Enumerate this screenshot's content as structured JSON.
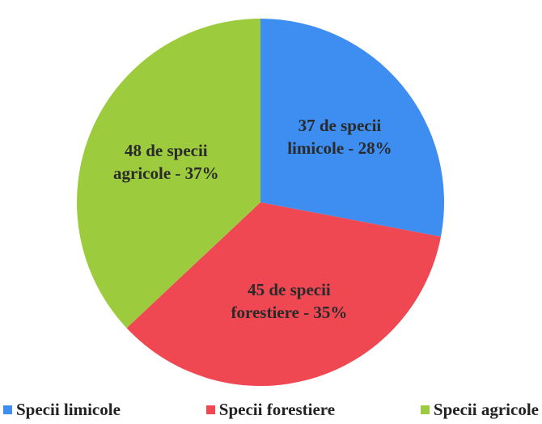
{
  "chart_data": {
    "type": "pie",
    "categories": [
      "Specii limicole",
      "Specii forestiere",
      "Specii agricole"
    ],
    "values": [
      28,
      35,
      37
    ],
    "value_labels": [
      "37 de specii limicole - 28%",
      "45 de specii forestiere - 35%",
      "48 de specii agricole - 37%"
    ],
    "colors": [
      "#3d8ef0",
      "#ef4853",
      "#9dcb3e"
    ],
    "legend": "bottom"
  }
}
